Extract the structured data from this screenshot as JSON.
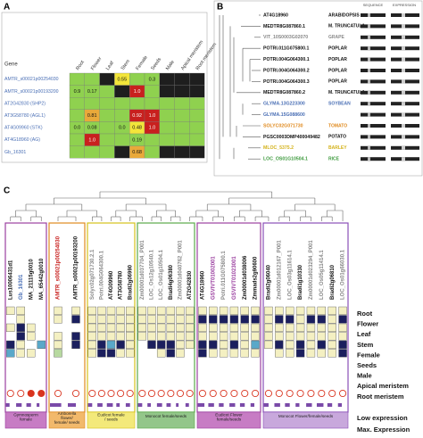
{
  "panel_a": {
    "label": "A",
    "gene_header": "Gene",
    "columns": [
      "Root",
      "Flower",
      "Leaf",
      "Stem",
      "Female",
      "Seeds",
      "Male",
      "Apical meristem",
      "Root meristem"
    ],
    "palette": {
      "g": "#8fd14f",
      "k": "#1e1e1e",
      "y": "#f3e53a",
      "r": "#c8201e",
      "o": "#e9a93a"
    },
    "rows": [
      {
        "gene": "AMTR_s00021p00254030",
        "cells": [
          {
            "c": "g"
          },
          {
            "c": "g"
          },
          {
            "c": "k"
          },
          {
            "c": "y",
            "text": "0.55"
          },
          {
            "c": "g"
          },
          {
            "c": "g",
            "text": "0.3"
          },
          {
            "c": "k"
          },
          {
            "c": "k"
          },
          {
            "c": "k"
          }
        ]
      },
      {
        "gene": "AMTR_s00021p00193200",
        "cells": [
          {
            "c": "g",
            "text": "0.9"
          },
          {
            "c": "g",
            "text": "0.17"
          },
          {
            "c": "g"
          },
          {
            "c": "k"
          },
          {
            "c": "r",
            "text": "1.0"
          },
          {
            "c": "g"
          },
          {
            "c": "k"
          },
          {
            "c": "k"
          },
          {
            "c": "k"
          }
        ]
      },
      {
        "gene": "AT2G42830 (SHP2)",
        "cells": [
          {
            "c": "g"
          },
          {
            "c": "g"
          },
          {
            "c": "g"
          },
          {
            "c": "g"
          },
          {
            "c": "g"
          },
          {
            "c": "g"
          },
          {
            "c": "g"
          },
          {
            "c": "g"
          },
          {
            "c": "g"
          }
        ]
      },
      {
        "gene": "AT3G58780 (AGL1)",
        "cells": [
          {
            "c": "g"
          },
          {
            "c": "o",
            "text": "0.81"
          },
          {
            "c": "g"
          },
          {
            "c": "g"
          },
          {
            "c": "r",
            "text": "0.92"
          },
          {
            "c": "r",
            "text": "1.0"
          },
          {
            "c": "g"
          },
          {
            "c": "g"
          },
          {
            "c": "g"
          }
        ]
      },
      {
        "gene": "AT4G09960 (STK)",
        "cells": [
          {
            "c": "g",
            "text": "0.0"
          },
          {
            "c": "g",
            "text": "0.08"
          },
          {
            "c": "g"
          },
          {
            "c": "g",
            "text": "0.0"
          },
          {
            "c": "y",
            "text": "0.48"
          },
          {
            "c": "r",
            "text": "1.0"
          },
          {
            "c": "g"
          },
          {
            "c": "g"
          },
          {
            "c": "g"
          }
        ]
      },
      {
        "gene": "AT4G18960 (AG)",
        "cells": [
          {
            "c": "g"
          },
          {
            "c": "r",
            "text": "1.0"
          },
          {
            "c": "g"
          },
          {
            "c": "g"
          },
          {
            "c": "g",
            "text": "0.19"
          },
          {
            "c": "g"
          },
          {
            "c": "g"
          },
          {
            "c": "g"
          },
          {
            "c": "g"
          }
        ]
      },
      {
        "gene": "Gb_16301",
        "cells": [
          {
            "c": "g"
          },
          {
            "c": "g"
          },
          {
            "c": "g"
          },
          {
            "c": "k"
          },
          {
            "c": "o",
            "text": "0.68"
          },
          {
            "c": "g"
          },
          {
            "c": "k"
          },
          {
            "c": "k"
          },
          {
            "c": "k"
          }
        ]
      }
    ]
  },
  "panel_b": {
    "label": "B",
    "headers": [
      "SEQUENCE",
      "EXPRESSION"
    ],
    "leaves": [
      {
        "name": "AT4G18960",
        "species": "ARABIDOPSIS",
        "color": "#111"
      },
      {
        "name": "MEDTR8G087860.1",
        "species": "M. TRUNCATULA",
        "color": "#111"
      },
      {
        "name": "VIT_10S0003G02070",
        "species": "GRAPE",
        "color": "#888"
      },
      {
        "name": "POTRI.011G075800.1",
        "species": "POPLAR",
        "color": "#111"
      },
      {
        "name": "POTRI.004G064300.1",
        "species": "POPLAR",
        "color": "#111"
      },
      {
        "name": "POTRI.004G064300.2",
        "species": "POPLAR",
        "color": "#111"
      },
      {
        "name": "POTRI.004G064300.3",
        "species": "POPLAR",
        "color": "#111"
      },
      {
        "name": "MEDTR8G087860.2",
        "species": "M. TRUNCATULA",
        "color": "#111"
      },
      {
        "name": "GLYMA.13G223300",
        "species": "SOYBEAN",
        "color": "#4a6fb5"
      },
      {
        "name": "GLYMA.15G088600",
        "color": "#4a6fb5"
      },
      {
        "name": "SOLYC02G071730",
        "species": "TOMATO",
        "color": "#e08a1e"
      },
      {
        "name": "PGSC0003DMP400049482",
        "species": "POTATO",
        "color": "#111"
      },
      {
        "name": "MLOC_5375.2",
        "species": "BARLEY",
        "color": "#d4b21a"
      },
      {
        "name": "LOC_OS01G10504.1",
        "species": "RICE",
        "color": "#3d9a3d"
      }
    ]
  },
  "panel_c": {
    "label": "C",
    "palette": {
      "y": "#f4f0c2",
      "n": "#1b1f5e",
      "b": "#59a8c9",
      "g": "#b7d9a0"
    },
    "row_labels": [
      "Root",
      "Flower",
      "Leaf",
      "Stem",
      "Female",
      "Seeds",
      "Male",
      "Apical meristem",
      "Root meristem"
    ],
    "low_label": "Low expression",
    "max_label": "Max. Expression",
    "groups": [
      {
        "label": [
          "Gymnosperm",
          "female"
        ],
        "border": "#9b3fa0",
        "fill": "#c77cc4",
        "columns": [
          {
            "gene": "Lus10006431d1",
            "color": "#111",
            "cells": "y.y.nb...",
            "low_filled": false,
            "max": 0.4
          },
          {
            "gene": "Gb_16301",
            "color": "#4a6fb5",
            "cells": "yynnyy...",
            "low_filled": false,
            "max": 0.6
          },
          {
            "gene": "MA_21115g0010",
            "color": "#111",
            "cells": "..yy.y...",
            "low_filled": true,
            "max": 0.5
          },
          {
            "gene": "MA_65442g0010",
            "color": "#111",
            "cells": "....b....",
            "low_filled": true,
            "max": 0.3
          }
        ]
      },
      {
        "label": [
          "Amborella",
          "flower/",
          "female/ seeds"
        ],
        "border": "#e08a1e",
        "fill": "#f2b96b",
        "columns": [
          {
            "gene": "AMTR_s00021p00254030",
            "color": "#c8201e",
            "cells": "yy.yyg...",
            "low_filled": false,
            "max": 0.7
          },
          {
            "gene": "AMTR_s00021p00193200",
            "color": "#111",
            "cells": "yn.nn....",
            "low_filled": false,
            "max": 0.5
          }
        ]
      },
      {
        "label": [
          "Eudicot female",
          "/ seeds"
        ],
        "border": "#d4c21a",
        "fill": "#f3e97a",
        "columns": [
          {
            "gene": "Solyc02g071730.2.1",
            "color": "#888",
            "cells": "yyyyyy...",
            "low_filled": false,
            "max": 0.5
          },
          {
            "gene": "Potri.004G064300.1",
            "color": "#888",
            "cells": "yyyynn...",
            "low_filled": false,
            "max": 0.6
          },
          {
            "gene": "AT4G09960",
            "color": "#111",
            "cells": "yyyybn...",
            "low_filled": false,
            "max": 0.7
          },
          {
            "gene": "AT3G58780",
            "color": "#111",
            "cells": "yyyyny...",
            "low_filled": false,
            "max": 0.4
          },
          {
            "gene": "Bradi2g06990",
            "color": "#111",
            "cells": "yyyyyy...",
            "low_filled": false,
            "max": 0.5
          }
        ]
      },
      {
        "label": [
          "Monocot female/seeds"
        ],
        "border": "#5aa94a",
        "fill": "#93c68a",
        "columns": [
          {
            "gene": "Zm00001d037704_P001",
            "color": "#888",
            "cells": "yyyy.....",
            "low_filled": false,
            "max": 0.5
          },
          {
            "gene": "LOC_Os12g10540.1",
            "color": "#888",
            "cells": "yyyyn....",
            "low_filled": false,
            "max": 0.4
          },
          {
            "gene": "LOC_Os01g10504.1",
            "color": "#888",
            "cells": "yyyyny...",
            "low_filled": false,
            "max": 0.6
          },
          {
            "gene": "Bradi4g06380",
            "color": "#111",
            "cells": "yyyynn...",
            "low_filled": false,
            "max": 0.5
          },
          {
            "gene": "Zm00001d040762_P001",
            "color": "#888",
            "cells": "yyyyyy...",
            "low_filled": false,
            "max": 0.3
          },
          {
            "gene": "AT2G42830",
            "color": "#111",
            "cells": "yyyyy....",
            "low_filled": false,
            "max": 0.4
          }
        ]
      },
      {
        "label": [
          "Eudicot Flower",
          "female/seeds"
        ],
        "border": "#9b3fa0",
        "fill": "#c77cc4",
        "columns": [
          {
            "gene": "AT4G18960",
            "color": "#111",
            "cells": "ynyynn...",
            "low_filled": false,
            "max": 0.7
          },
          {
            "gene": "GSVIVT01002001",
            "color": "#9b3fa0",
            "cells": "ynyyny...",
            "low_filled": false,
            "max": 0.6
          },
          {
            "gene": "Potri.011G075800.1",
            "color": "#888",
            "cells": "ynyyyy...",
            "low_filled": false,
            "max": 0.5
          },
          {
            "gene": "GSVIVT01023001",
            "color": "#9b3fa0",
            "cells": "ynyyny...",
            "low_filled": false,
            "max": 0.6
          },
          {
            "gene": "Zm00001d038006",
            "color": "#111",
            "cells": "ynyyyy...",
            "low_filled": false,
            "max": 0.5
          },
          {
            "gene": "Zmmads2g90600",
            "color": "#111",
            "cells": "ynyyby...",
            "low_filled": false,
            "max": 0.4
          }
        ]
      },
      {
        "label": [
          "Monocot Flower/female/seeds"
        ],
        "border": "#8a4fb8",
        "fill": "#c8a8dc",
        "columns": [
          {
            "gene": "Bradi2g06040",
            "color": "#111",
            "cells": "yyyyy....",
            "low_filled": false,
            "max": 0.5
          },
          {
            "gene": "Zm00001d012167_P001",
            "color": "#888",
            "cells": "ynyyny...",
            "low_filled": false,
            "max": 0.6
          },
          {
            "gene": "LOC_Os03g11614.1",
            "color": "#888",
            "cells": "ynyyyy...",
            "low_filled": false,
            "max": 0.5
          },
          {
            "gene": "Bradi1g10330",
            "color": "#111",
            "cells": "yyyynn...",
            "low_filled": false,
            "max": 0.4
          },
          {
            "gene": "Zm00001d023294_P001",
            "color": "#888",
            "cells": "ynyyyy...",
            "low_filled": false,
            "max": 0.6
          },
          {
            "gene": "LOC_Os05g11414.1",
            "color": "#888",
            "cells": "ynyyny...",
            "low_filled": false,
            "max": 0.7
          },
          {
            "gene": "Bradi2g06810",
            "color": "#111",
            "cells": "yyyyyy...",
            "low_filled": false,
            "max": 0.5
          },
          {
            "gene": "LOC_Os01g66030.1",
            "color": "#888",
            "cells": "ynyynn...",
            "low_filled": false,
            "max": 0.4
          }
        ]
      }
    ]
  }
}
